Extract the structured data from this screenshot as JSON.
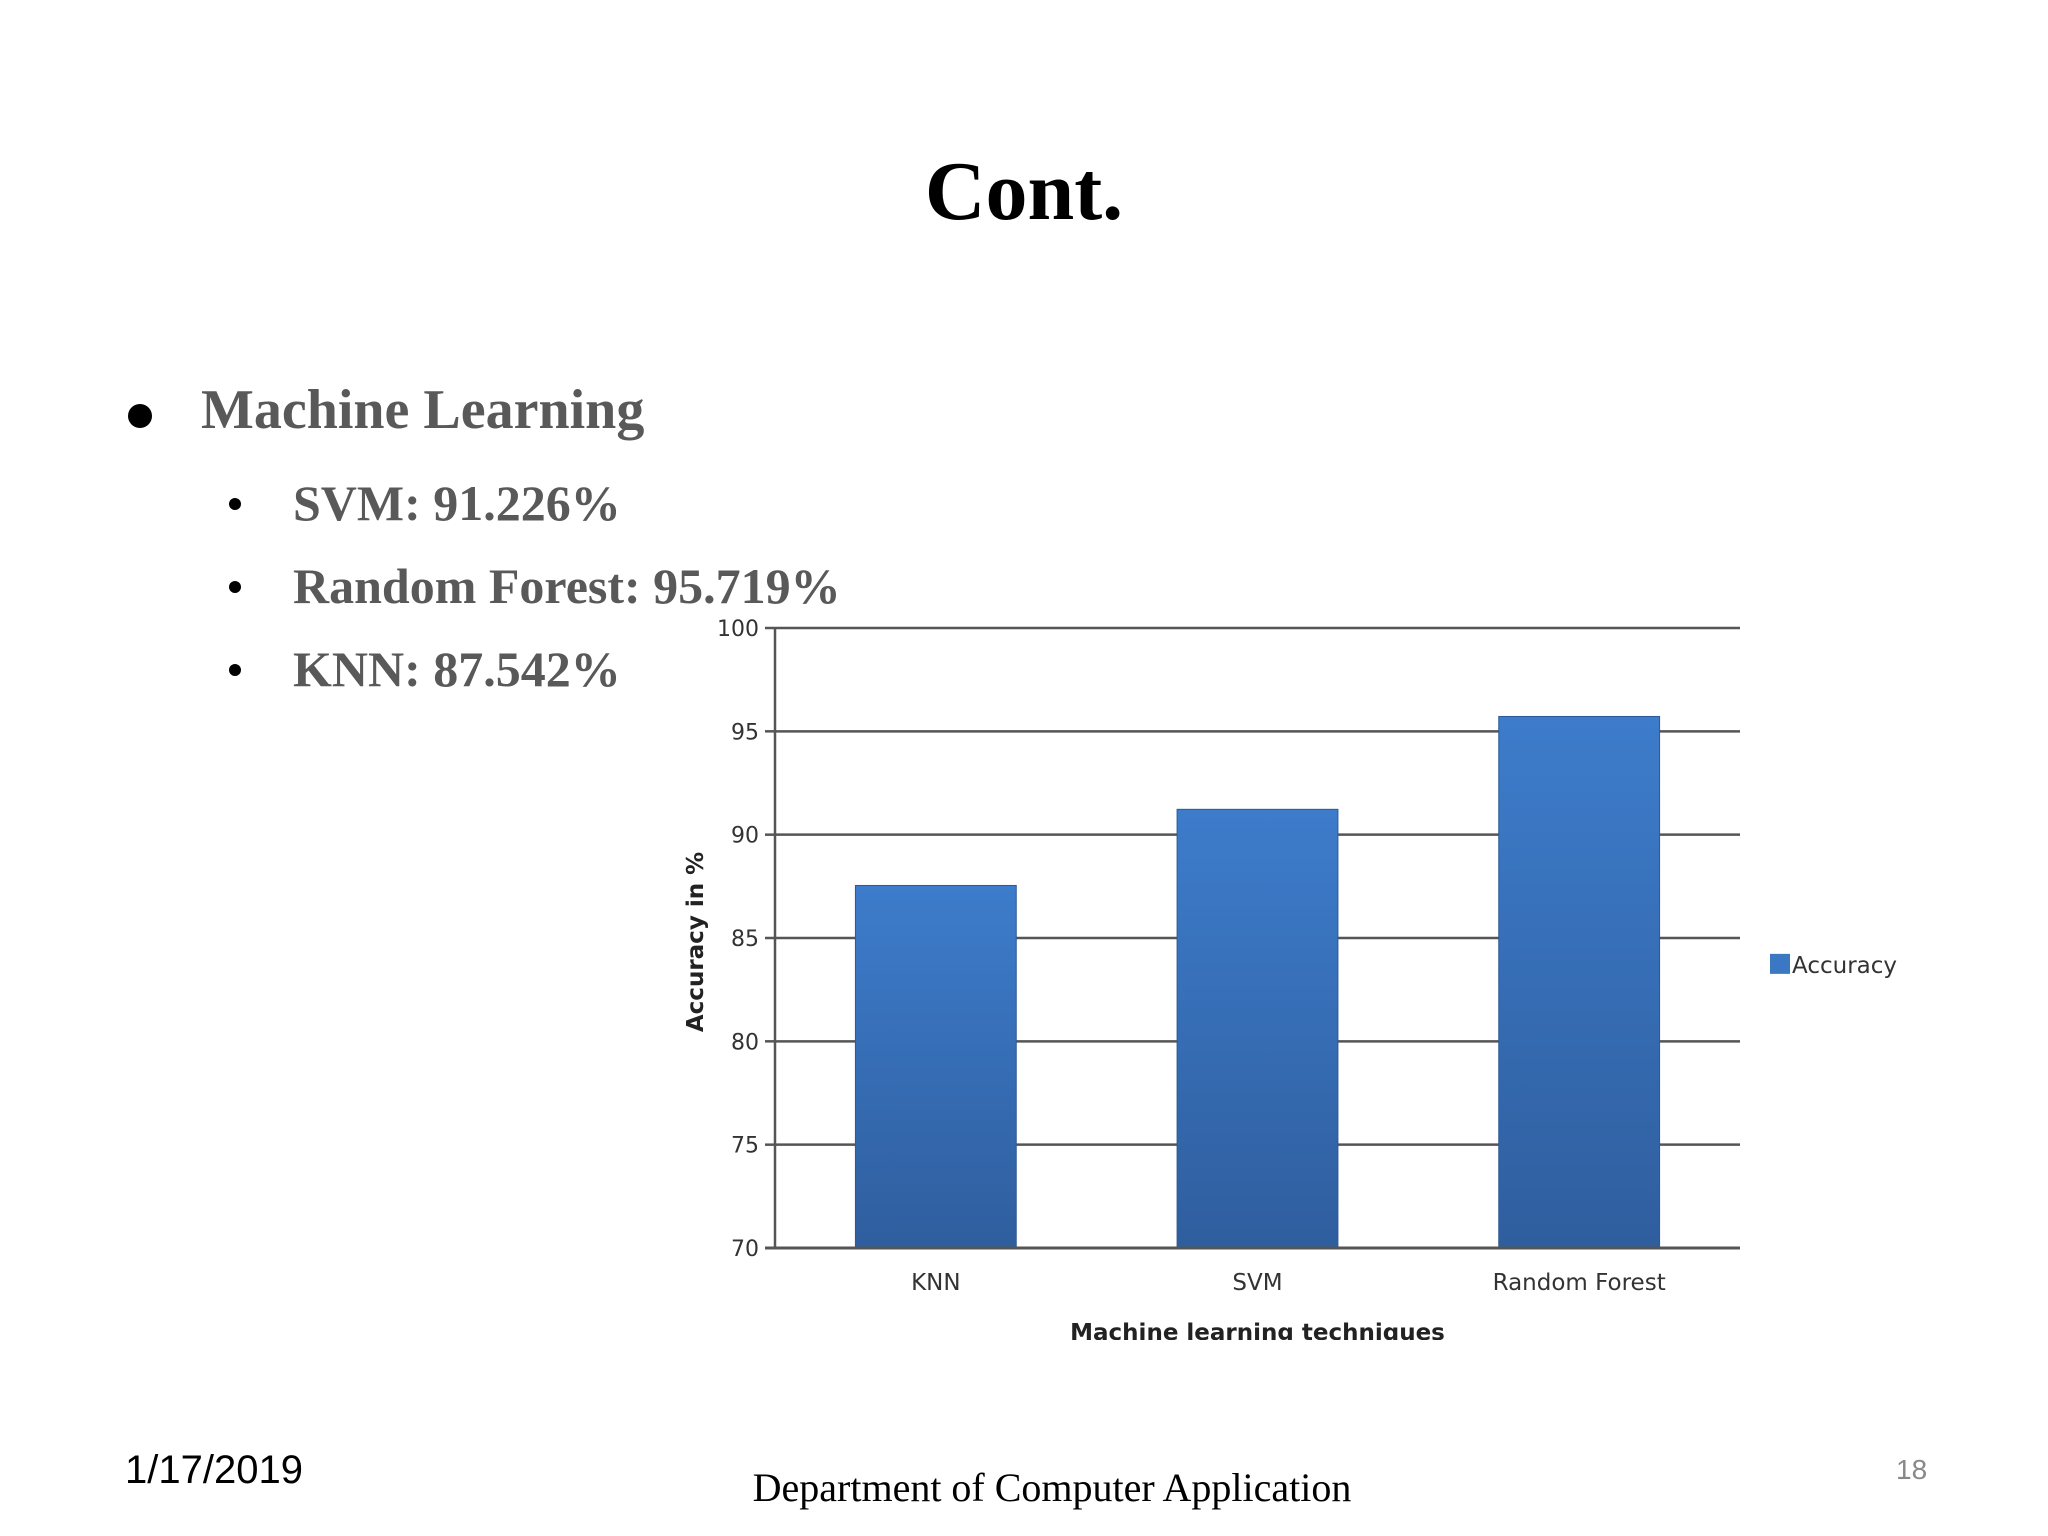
{
  "slide": {
    "title": "Cont.",
    "bullet": "Machine Learning",
    "sub_bullets": [
      "SVM: 91.226%",
      "Random Forest: 95.719%",
      "KNN: 87.542%"
    ]
  },
  "chart_data": {
    "type": "bar",
    "categories": [
      "KNN",
      "SVM",
      "Random Forest"
    ],
    "series": [
      {
        "name": "Accuracy",
        "values": [
          87.542,
          91.226,
          95.719
        ],
        "color": "#3b78c4"
      }
    ],
    "xlabel": "Machine learning techniques",
    "ylabel": "Accuracy in %",
    "ylim": [
      70,
      100
    ],
    "yticks": [
      70,
      75,
      80,
      85,
      90,
      95,
      100
    ],
    "grid": true,
    "legend_position": "right"
  },
  "footer": {
    "date": "1/17/2019",
    "department": "Department of Computer Application",
    "page_number": "18"
  }
}
